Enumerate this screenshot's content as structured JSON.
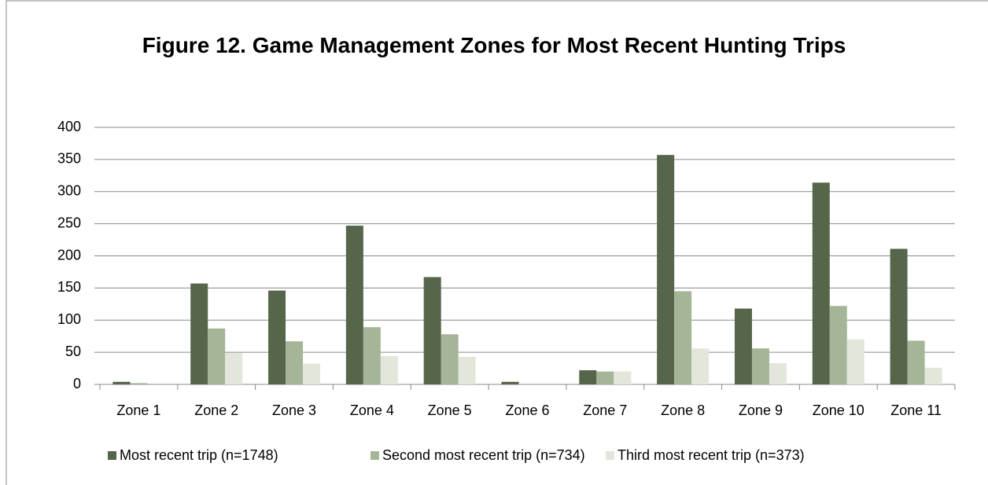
{
  "chart_data": {
    "type": "bar",
    "title": "Figure 12. Game Management Zones for Most Recent Hunting Trips",
    "categories": [
      "Zone 1",
      "Zone 2",
      "Zone 3",
      "Zone 4",
      "Zone 5",
      "Zone 6",
      "Zone 7",
      "Zone 8",
      "Zone 9",
      "Zone 10",
      "Zone 11"
    ],
    "series": [
      {
        "name": "Most recent trip (n=1748)",
        "color": "#55664a",
        "values": [
          4,
          157,
          146,
          247,
          167,
          4,
          22,
          357,
          118,
          314,
          211
        ]
      },
      {
        "name": "Second most recent trip (n=734)",
        "color": "#a5b598",
        "values": [
          2,
          87,
          67,
          89,
          78,
          0,
          20,
          145,
          56,
          122,
          68
        ]
      },
      {
        "name": "Third most recent trip (n=373)",
        "color": "#e3e6db",
        "values": [
          0,
          49,
          32,
          44,
          43,
          0,
          20,
          56,
          33,
          70,
          26
        ]
      }
    ],
    "ylim": [
      0,
      400
    ],
    "yticks": [
      0,
      50,
      100,
      150,
      200,
      250,
      300,
      350,
      400
    ],
    "grid": true,
    "legend": "bottom"
  }
}
